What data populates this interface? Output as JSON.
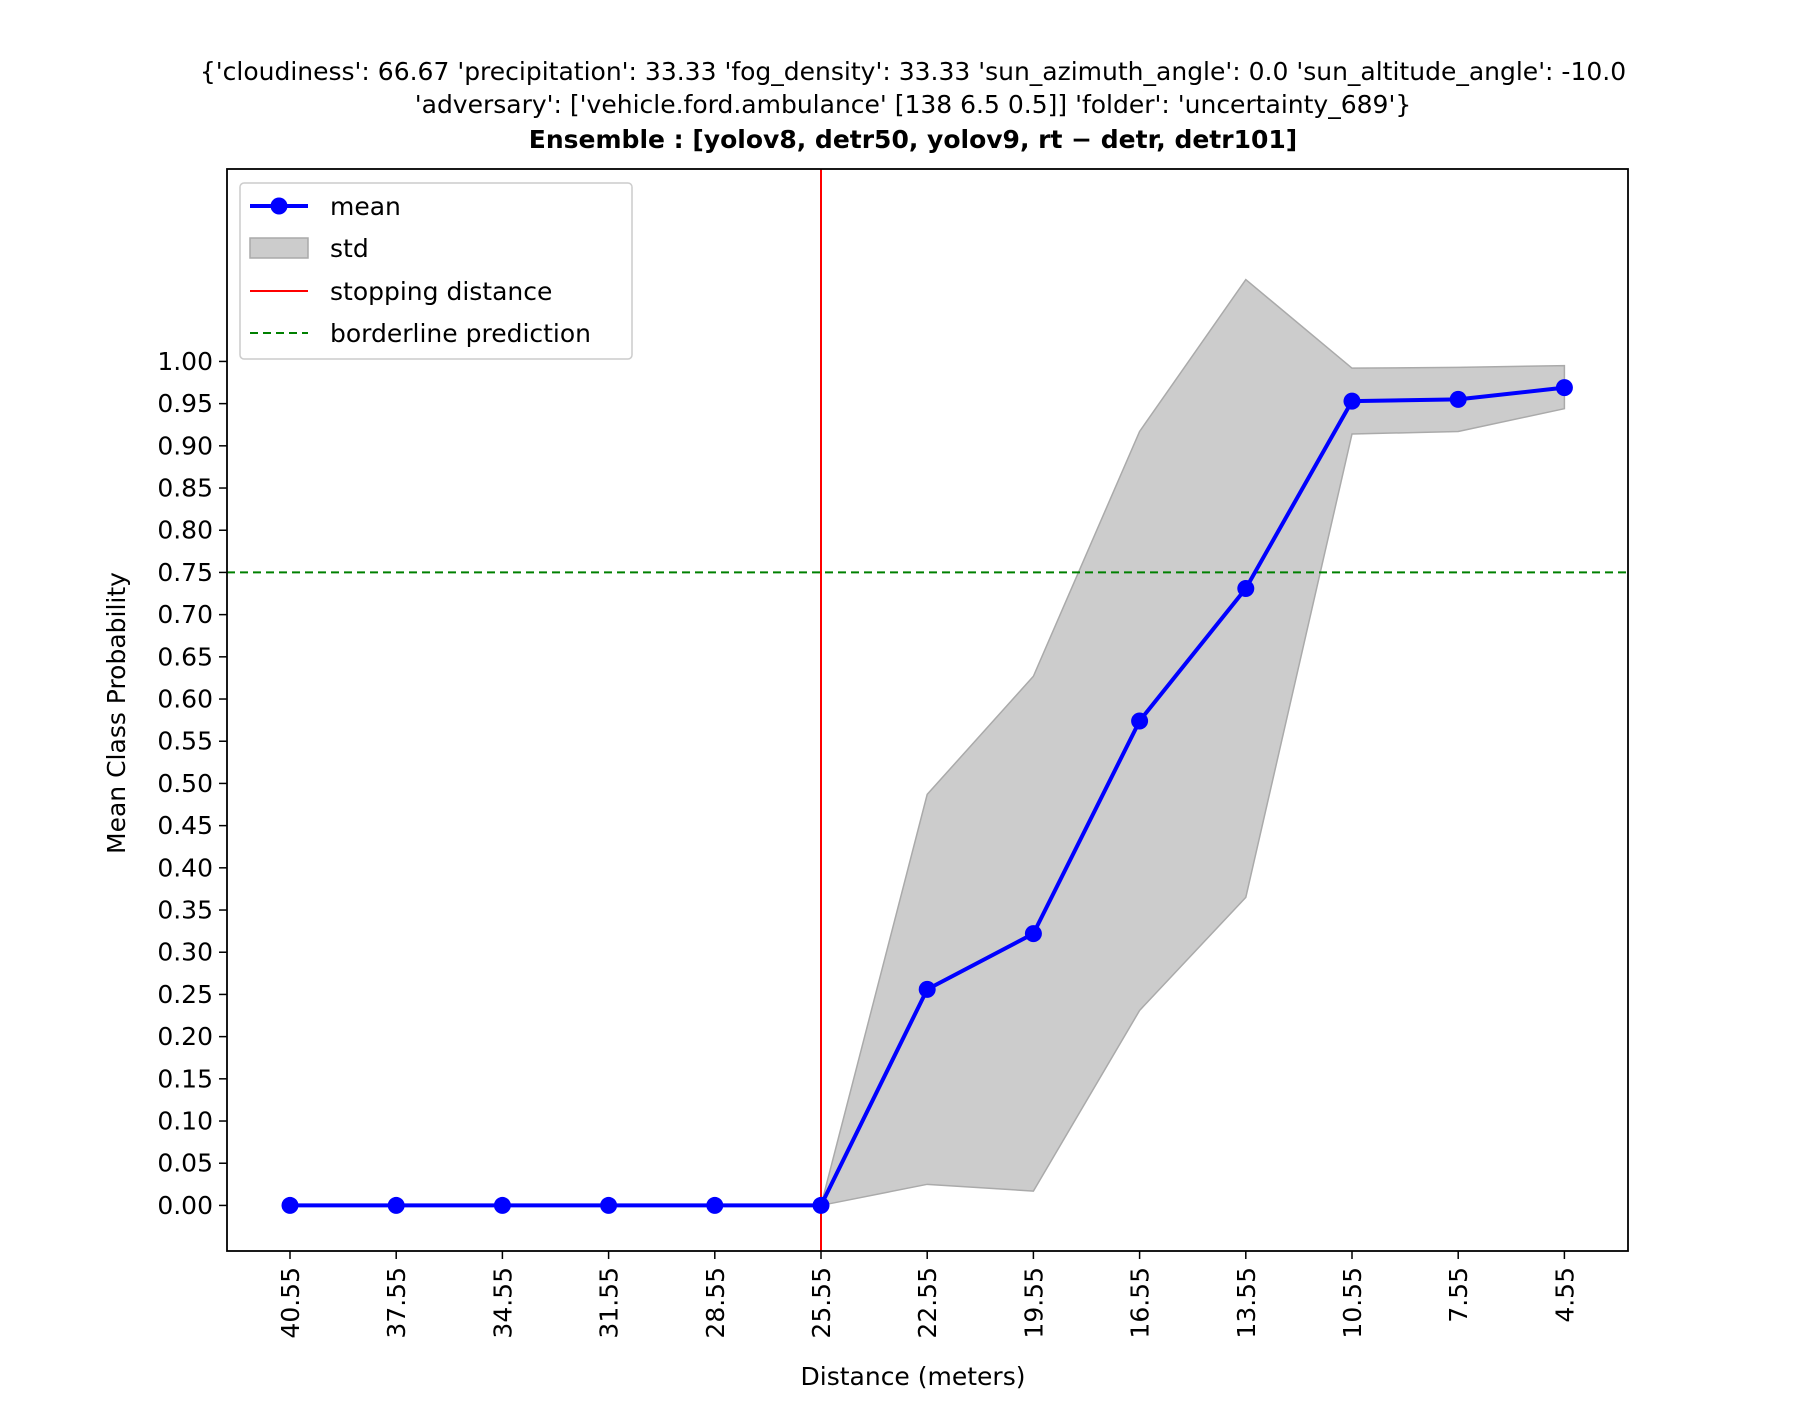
{
  "chart_data": {
    "type": "line",
    "title_lines": [
      "{'cloudiness': 66.67 'precipitation': 33.33 'fog_density': 33.33 'sun_azimuth_angle': 0.0 'sun_altitude_angle': -10.0",
      "'adversary': ['vehicle.ford.ambulance' [138 6.5 0.5]] 'folder': 'uncertainty_689'}"
    ],
    "subtitle": "Ensemble : [yolov8, detr50, yolov9, rt − detr, detr101]",
    "xlabel": "Distance (meters)",
    "ylabel": "Mean Class Probability",
    "categories": [
      "40.55",
      "37.55",
      "34.55",
      "31.55",
      "28.55",
      "25.55",
      "22.55",
      "19.55",
      "16.55",
      "13.55",
      "10.55",
      "7.55",
      "4.55"
    ],
    "series": [
      {
        "name": "mean",
        "values": [
          0.0,
          0.0,
          0.0,
          0.0,
          0.0,
          0.0,
          0.256,
          0.322,
          0.574,
          0.731,
          0.953,
          0.955,
          0.969
        ],
        "color": "#0000ff"
      }
    ],
    "std_band": {
      "name": "std",
      "lower": [
        0.0,
        0.0,
        0.0,
        0.0,
        0.0,
        0.0,
        0.025,
        0.017,
        0.231,
        0.365,
        0.914,
        0.917,
        0.944
      ],
      "upper": [
        0.0,
        0.0,
        0.0,
        0.0,
        0.0,
        0.0,
        0.487,
        0.627,
        0.917,
        1.097,
        0.992,
        0.993,
        0.995
      ],
      "color": "#cccccc"
    },
    "stopping_distance": {
      "name": "stopping distance",
      "x_category": "25.55",
      "color": "#ff0000"
    },
    "borderline_prediction": {
      "name": "borderline prediction",
      "y": 0.75,
      "color": "#008000"
    },
    "yticks": [
      "0.00",
      "0.05",
      "0.10",
      "0.15",
      "0.20",
      "0.25",
      "0.30",
      "0.35",
      "0.40",
      "0.45",
      "0.50",
      "0.55",
      "0.60",
      "0.65",
      "0.70",
      "0.75",
      "0.80",
      "0.85",
      "0.90",
      "0.95",
      "1.00"
    ],
    "ylim": [
      -0.054,
      1.228
    ],
    "legend_position": "top-left",
    "legend": [
      "mean",
      "std",
      "stopping distance",
      "borderline prediction"
    ]
  }
}
